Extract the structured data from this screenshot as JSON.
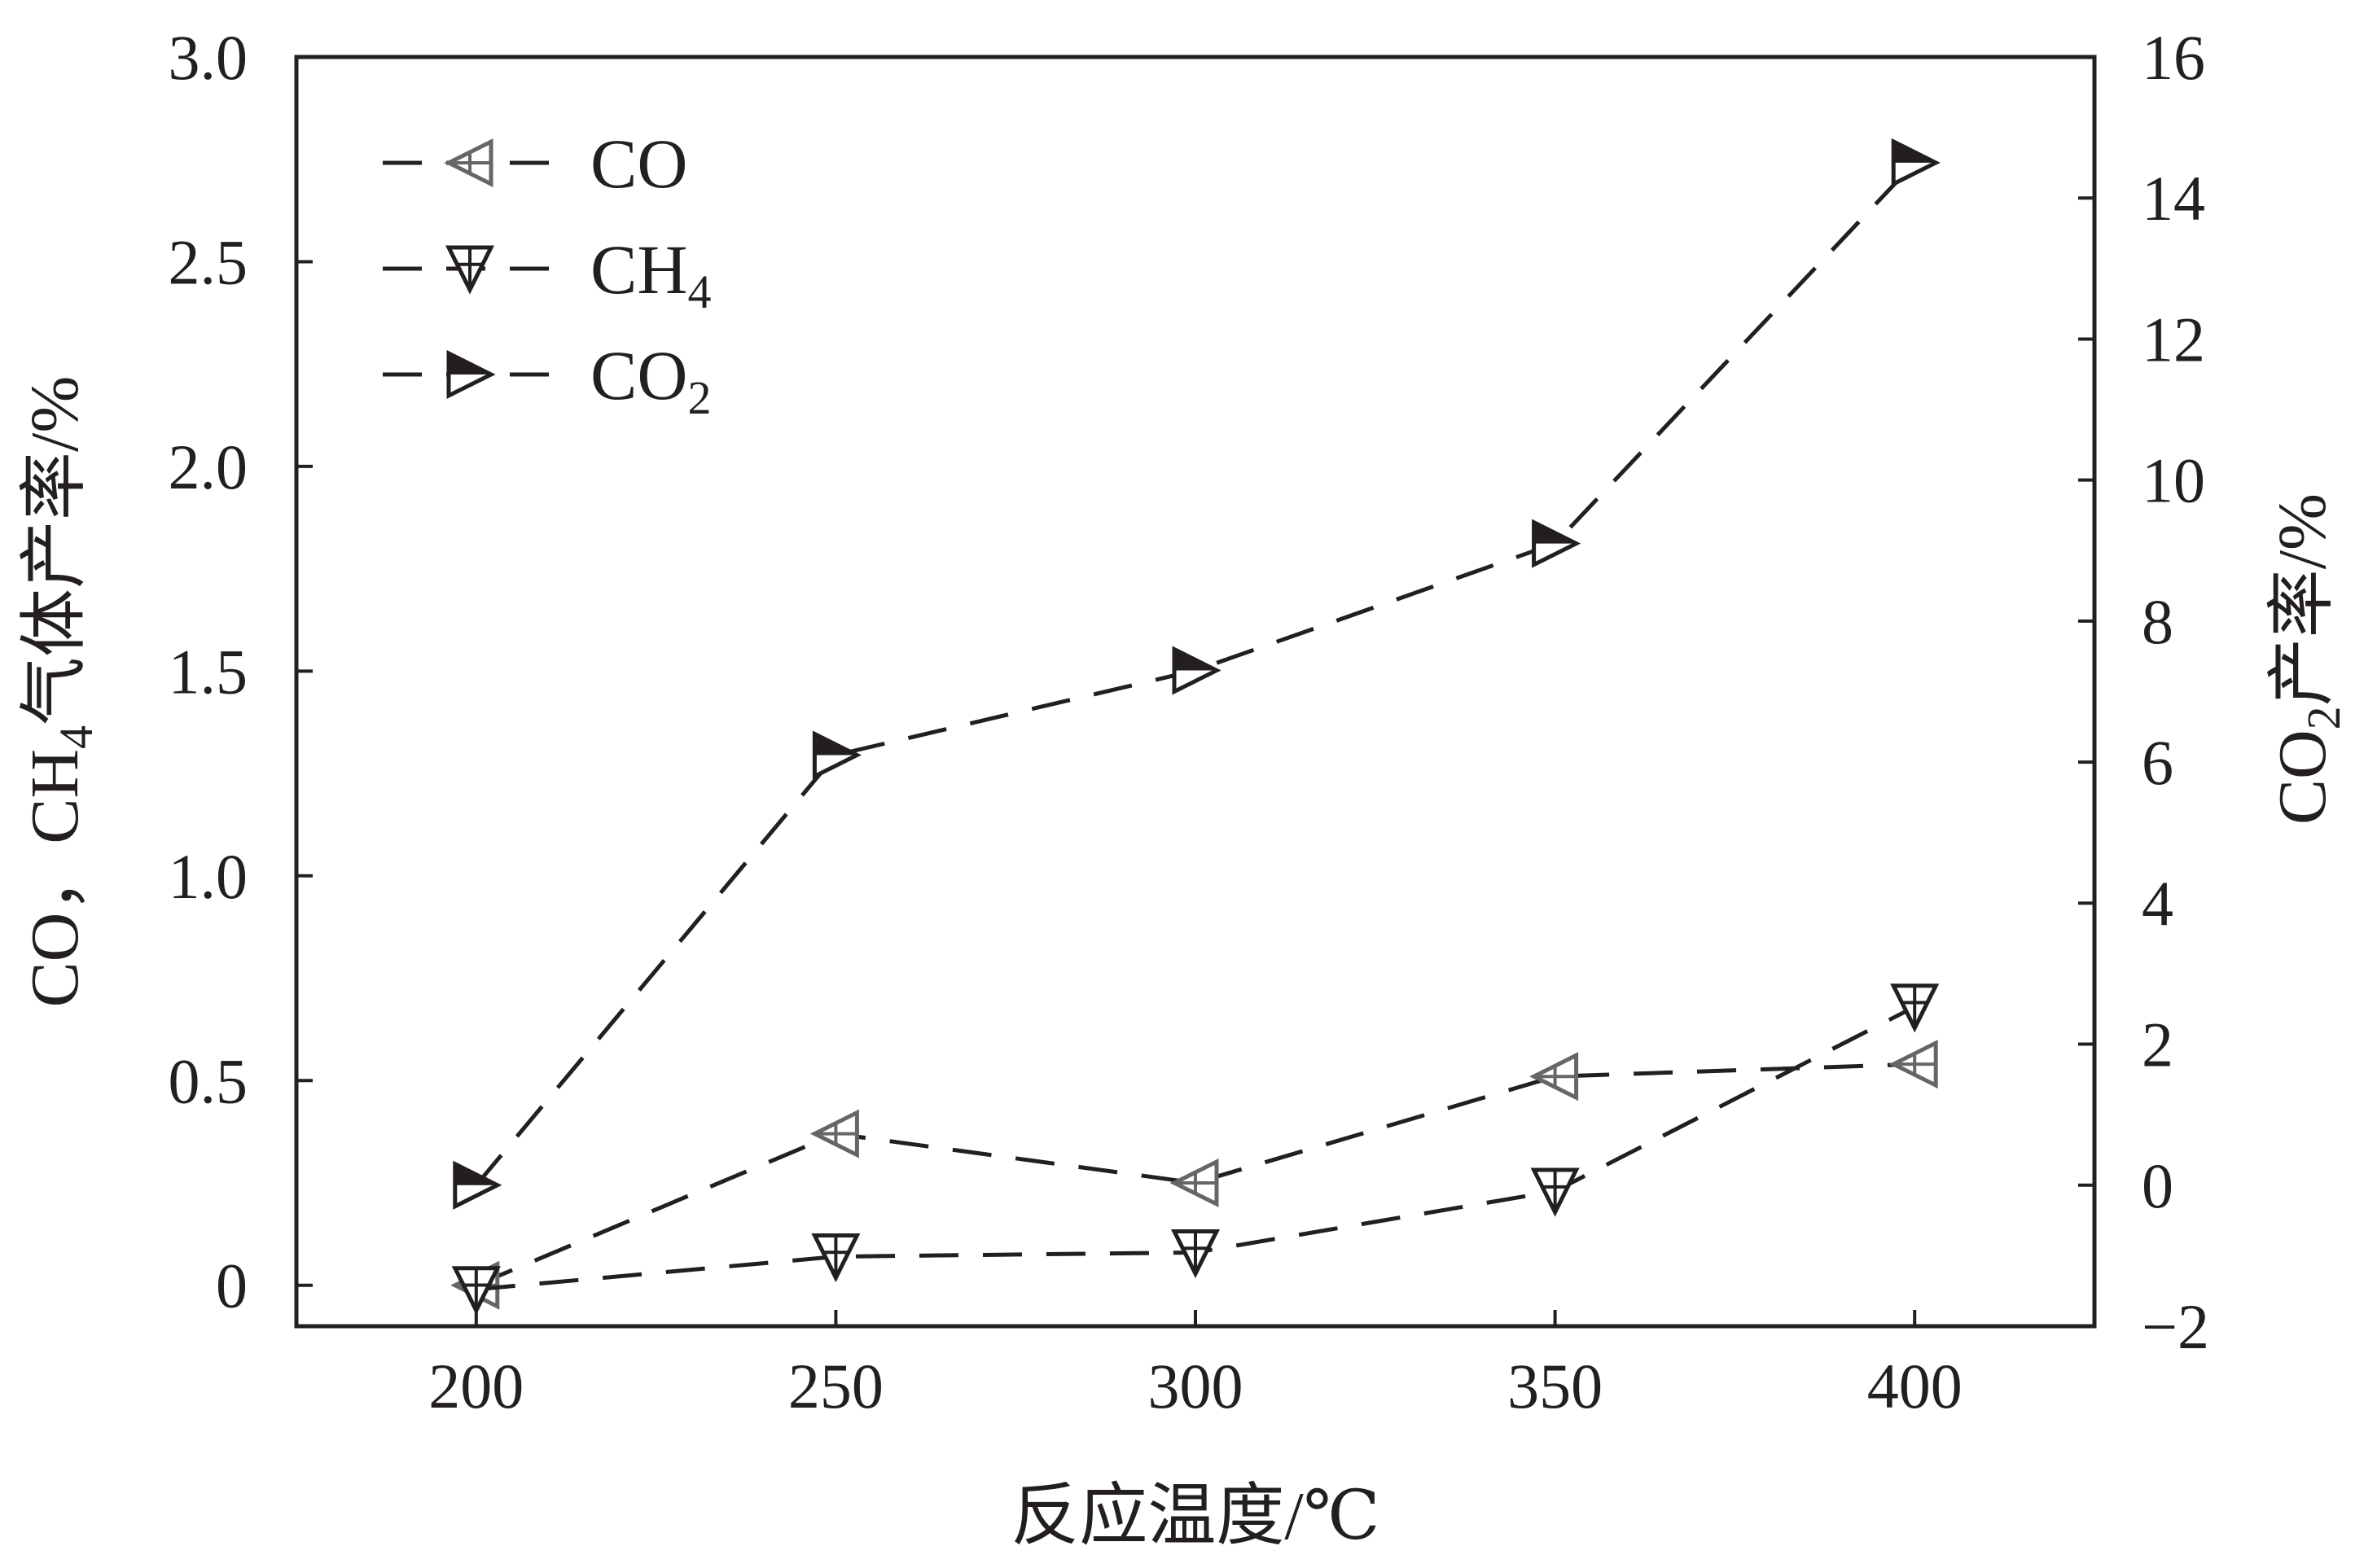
{
  "chart_data": {
    "type": "line",
    "x": [
      200,
      250,
      300,
      350,
      400
    ],
    "xlim": [
      175,
      425
    ],
    "xticks": [
      "200",
      "250",
      "300",
      "350",
      "400"
    ],
    "xlabel": "反应温度/℃",
    "ylim_left": [
      -0.1,
      3.0
    ],
    "yticks_left": [
      "0",
      "0.5",
      "1.0",
      "1.5",
      "2.0",
      "2.5",
      "3.0"
    ],
    "ylabel_left": {
      "pre": "CO，CH",
      "sub": "4",
      "post": "气体产率/%"
    },
    "ylim_right": [
      -2,
      16
    ],
    "yticks_right": [
      "−2",
      "0",
      "2",
      "4",
      "6",
      "8",
      "10",
      "12",
      "14",
      "16"
    ],
    "ylabel_right": {
      "pre": "CO",
      "sub": "2",
      "post": "产率/%"
    },
    "legend_position": "top-left",
    "grid": false,
    "series": [
      {
        "key": "co",
        "label": {
          "pre": "CO",
          "sub": "",
          "post": ""
        },
        "axis": "left",
        "marker": "left-triangle",
        "color": "#666666",
        "values": [
          0.0,
          0.37,
          0.25,
          0.51,
          0.54
        ]
      },
      {
        "key": "ch4",
        "label": {
          "pre": "CH",
          "sub": "4",
          "post": ""
        },
        "axis": "left",
        "marker": "down-triangle",
        "color": "#231f20",
        "values": [
          -0.01,
          0.07,
          0.08,
          0.23,
          0.68
        ]
      },
      {
        "key": "co2",
        "label": {
          "pre": "CO",
          "sub": "2",
          "post": ""
        },
        "axis": "right",
        "marker": "right-triangle-half",
        "color": "#231f20",
        "values": [
          0.0,
          6.1,
          7.3,
          9.1,
          14.5
        ]
      }
    ]
  }
}
